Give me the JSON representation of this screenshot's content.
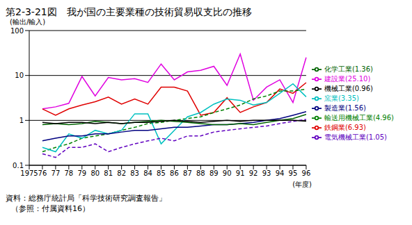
{
  "chart_data": {
    "type": "line",
    "title": "第2-3-21図　我が国の主要業種の技術貿易収支比の推移",
    "y_label": "(輸出/輸入)",
    "x_label": "(年度)",
    "source": "資料：総務庁統計局「科学技術研究調査報告」",
    "note": "（参照：付属資料16）",
    "categories": [
      "1975",
      "76",
      "77",
      "78",
      "79",
      "80",
      "81",
      "82",
      "83",
      "84",
      "85",
      "86",
      "87",
      "88",
      "89",
      "90",
      "91",
      "92",
      "93",
      "94",
      "95",
      "96"
    ],
    "log": "y",
    "ylim": [
      0.1,
      100
    ],
    "yticks": [
      0.1,
      1,
      10,
      100
    ],
    "grid": true,
    "legend": "right",
    "series": [
      {
        "name": "建設業(25.10)",
        "color": "#e000e0",
        "line_style": "solid",
        "values": [
          null,
          1.8,
          2.0,
          2.4,
          9.5,
          3.5,
          9,
          8,
          8.5,
          7,
          18,
          8,
          12,
          13,
          16,
          6,
          30,
          2.8,
          5.5,
          8,
          2.5,
          25.1
        ]
      },
      {
        "name": "鉄鋼業(6.93)",
        "color": "#e00000",
        "line_style": "solid",
        "values": [
          null,
          1.8,
          1.3,
          1.8,
          2.2,
          2.6,
          3.3,
          2.3,
          3,
          2.3,
          5.5,
          5.5,
          4.5,
          1.3,
          1.5,
          3.2,
          1.5,
          2,
          2.5,
          5,
          4,
          6.93
        ]
      },
      {
        "name": "輸送用機械工業(4.96)",
        "color": "#008000",
        "line_style": "dashed",
        "values": [
          null,
          0.2,
          0.25,
          0.3,
          0.4,
          0.45,
          0.5,
          0.6,
          0.7,
          0.85,
          0.9,
          1.0,
          1.1,
          1.2,
          1.5,
          1.8,
          2.2,
          3,
          3.5,
          4.5,
          4.5,
          4.96
        ]
      },
      {
        "name": "窯業(3.35)",
        "color": "#00c0c0",
        "line_style": "solid",
        "values": [
          null,
          0.25,
          0.2,
          0.5,
          0.4,
          0.6,
          0.5,
          0.6,
          1.4,
          1.4,
          0.3,
          0.6,
          1.2,
          1.5,
          2.3,
          3,
          2.8,
          2.2,
          2.5,
          4,
          6.5,
          3.35
        ]
      },
      {
        "name": "製造業(1.56)",
        "color": "#000080",
        "line_style": "solid",
        "values": [
          null,
          0.35,
          0.4,
          0.45,
          0.45,
          0.5,
          0.5,
          0.55,
          0.6,
          0.6,
          0.65,
          0.7,
          0.7,
          0.75,
          0.8,
          0.8,
          0.85,
          0.9,
          1.0,
          1.1,
          1.3,
          1.56
        ]
      },
      {
        "name": "化学工業(1.36)",
        "color": "#006400",
        "line_style": "solid",
        "values": [
          null,
          0.8,
          0.85,
          0.8,
          0.85,
          0.95,
          0.9,
          0.85,
          0.9,
          0.95,
          1.0,
          0.95,
          0.9,
          0.85,
          0.8,
          0.8,
          0.85,
          0.8,
          0.9,
          1.0,
          1.1,
          1.36
        ]
      },
      {
        "name": "電気機械工業(1.05)",
        "color": "#6000c0",
        "line_style": "dashed",
        "values": [
          null,
          0.18,
          0.15,
          0.25,
          0.25,
          0.3,
          0.2,
          0.25,
          0.3,
          0.35,
          0.4,
          0.35,
          0.45,
          0.45,
          0.55,
          0.6,
          0.65,
          0.7,
          0.75,
          0.85,
          0.95,
          1.05
        ]
      },
      {
        "name": "機械工業(0.96)",
        "color": "#000000",
        "line_style": "solid",
        "values": [
          null,
          0.9,
          0.85,
          0.9,
          0.9,
          0.85,
          0.9,
          0.85,
          0.9,
          0.9,
          0.95,
          1.0,
          0.95,
          0.9,
          0.95,
          1.0,
          0.95,
          1.0,
          1.0,
          1.0,
          1.0,
          0.96
        ]
      }
    ]
  }
}
